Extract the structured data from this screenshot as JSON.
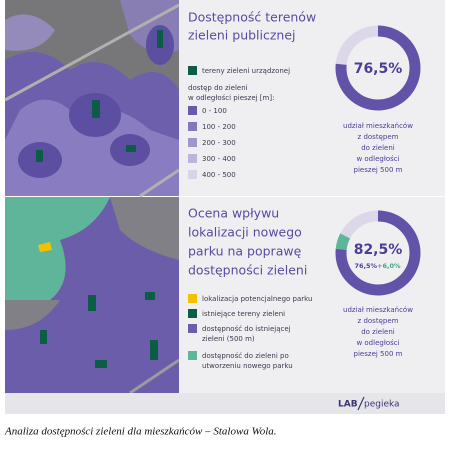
{
  "top": {
    "title": [
      "Dostępność terenów",
      "zieleni publicznej"
    ],
    "legend": {
      "green": "tereny zieleni urządzonej",
      "heading": [
        "dostęp do zieleni",
        "w odległości pieszej [m]:"
      ],
      "classes": [
        "0 - 100",
        "100 - 200",
        "200 - 300",
        "300 - 400",
        "400 - 500"
      ]
    },
    "donut": {
      "value": 76.5,
      "label": "76,5%"
    },
    "description": [
      "udział mieszkańców",
      "z dostępem",
      "do zieleni",
      "w odległości",
      "pieszej 500 m"
    ]
  },
  "bottom": {
    "title": [
      "Ocena wpływu",
      "lokalizacji nowego",
      "parku na poprawę",
      "dostępności zieleni"
    ],
    "legend": {
      "park": "lokalizacja potencjalnego parku",
      "green": "istniejące tereny zieleni",
      "existing": [
        "dostępność do istniejącej",
        "zieleni (500 m)"
      ],
      "new": [
        "dostępność do zieleni po",
        "utworzeniu nowego parku"
      ]
    },
    "donut": {
      "value": 82.5,
      "label": "82,5%",
      "existing": {
        "value": 76.5,
        "label": "76,5%"
      },
      "added": {
        "value": 6.0,
        "label": "+6,0%"
      }
    },
    "description": [
      "udział mieszkańców",
      "z dostępem",
      "do zieleni",
      "w odległości",
      "pieszej 500 m"
    ]
  },
  "footer": {
    "logo": [
      "LAB",
      "pegieka"
    ]
  },
  "caption": "Analiza dostępności zieleni dla mieszkańców – Stalowa Wola."
}
